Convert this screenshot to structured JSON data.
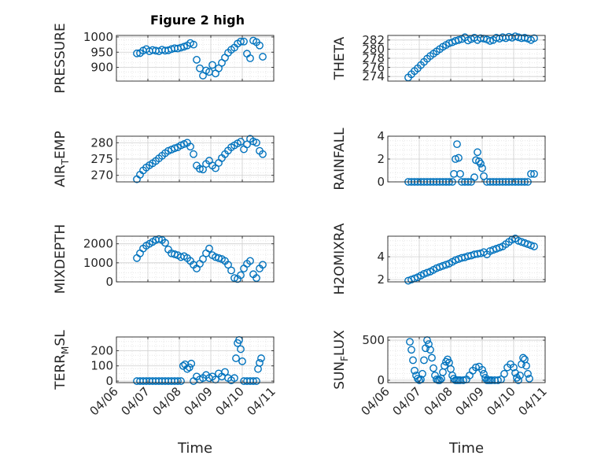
{
  "figure_title": "Figure 2 high",
  "colors": {
    "marker": "#0072BD",
    "axis": "#262626",
    "grid": "#d9d9d9"
  },
  "chart_data": [
    {
      "type": "scatter",
      "title": "Figure 2 high",
      "ylabel": "PRESSURE",
      "xlabel": "",
      "xlim": [
        0,
        5
      ],
      "ylim": [
        855,
        1005
      ],
      "yticks": [
        900,
        950,
        1000
      ],
      "xticks": [
        0,
        1,
        2,
        3,
        4,
        5
      ],
      "xticklabels": [
        "04/06",
        "04/07",
        "04/08",
        "04/09",
        "04/10",
        "04/11"
      ],
      "grid": true,
      "marker": "o",
      "x": [
        0.65,
        0.75,
        0.85,
        0.95,
        1.05,
        1.15,
        1.25,
        1.35,
        1.45,
        1.55,
        1.65,
        1.75,
        1.85,
        1.95,
        2.05,
        2.15,
        2.25,
        2.35,
        2.45,
        2.55,
        2.65,
        2.75,
        2.85,
        2.95,
        3.05,
        3.15,
        3.25,
        3.35,
        3.45,
        3.55,
        3.65,
        3.75,
        3.85,
        3.95,
        4.05,
        4.15,
        4.25,
        4.35,
        4.45,
        4.55,
        4.65
      ],
      "y": [
        946,
        947,
        955,
        960,
        953,
        957,
        955,
        953,
        958,
        955,
        956,
        960,
        963,
        962,
        965,
        968,
        972,
        980,
        975,
        925,
        897,
        873,
        890,
        885,
        908,
        880,
        897,
        915,
        932,
        948,
        958,
        965,
        978,
        985,
        985,
        945,
        930,
        988,
        983,
        972,
        935
      ]
    },
    {
      "type": "scatter",
      "title": "",
      "ylabel": "THETA",
      "xlabel": "",
      "xlim": [
        0,
        5
      ],
      "ylim": [
        273,
        283
      ],
      "yticks": [
        274,
        276,
        278,
        280,
        282
      ],
      "xticks": [
        0,
        1,
        2,
        3,
        4,
        5
      ],
      "xticklabels": [
        "04/06",
        "04/07",
        "04/08",
        "04/09",
        "04/10",
        "04/11"
      ],
      "grid": true,
      "marker": "o",
      "x": [
        0.65,
        0.75,
        0.85,
        0.95,
        1.05,
        1.15,
        1.25,
        1.35,
        1.45,
        1.55,
        1.65,
        1.75,
        1.85,
        1.95,
        2.05,
        2.15,
        2.25,
        2.35,
        2.45,
        2.55,
        2.65,
        2.75,
        2.85,
        2.95,
        3.05,
        3.15,
        3.25,
        3.35,
        3.45,
        3.55,
        3.65,
        3.75,
        3.85,
        3.95,
        4.05,
        4.15,
        4.25,
        4.35,
        4.45,
        4.55,
        4.65
      ],
      "y": [
        273.8,
        274.5,
        275.2,
        275.8,
        276.5,
        277.2,
        277.9,
        278.5,
        279.0,
        279.5,
        280.0,
        280.5,
        280.9,
        281.3,
        281.5,
        281.8,
        282.0,
        282.2,
        282.6,
        281.9,
        282.2,
        282.5,
        282.0,
        282.4,
        282.3,
        282.1,
        281.8,
        282.0,
        282.5,
        282.3,
        282.6,
        282.4,
        282.7,
        282.5,
        282.8,
        282.6,
        282.4,
        282.5,
        282.3,
        282.0,
        282.4
      ]
    },
    {
      "type": "scatter",
      "title": "",
      "ylabel": "AIR_TEMP",
      "xlabel": "",
      "xlim": [
        0,
        5
      ],
      "ylim": [
        268,
        282
      ],
      "yticks": [
        270,
        275,
        280
      ],
      "xticks": [
        0,
        1,
        2,
        3,
        4,
        5
      ],
      "xticklabels": [
        "04/06",
        "04/07",
        "04/08",
        "04/09",
        "04/10",
        "04/11"
      ],
      "grid": true,
      "marker": "o",
      "x": [
        0.65,
        0.75,
        0.85,
        0.95,
        1.05,
        1.15,
        1.25,
        1.35,
        1.45,
        1.55,
        1.65,
        1.75,
        1.85,
        1.95,
        2.05,
        2.15,
        2.25,
        2.35,
        2.45,
        2.55,
        2.65,
        2.75,
        2.85,
        2.95,
        3.05,
        3.15,
        3.25,
        3.35,
        3.45,
        3.55,
        3.65,
        3.75,
        3.85,
        3.95,
        4.05,
        4.15,
        4.25,
        4.35,
        4.45,
        4.55,
        4.65
      ],
      "y": [
        268.8,
        270.2,
        271.5,
        272.4,
        273.1,
        273.7,
        274.4,
        275.2,
        276.0,
        276.8,
        277.5,
        277.9,
        278.3,
        278.6,
        279.2,
        279.6,
        280.0,
        278.8,
        276.5,
        273.0,
        272.0,
        271.8,
        273.5,
        274.5,
        273.0,
        272.2,
        273.8,
        275.3,
        276.5,
        277.6,
        278.6,
        279.2,
        279.8,
        280.3,
        278.0,
        279.5,
        281.2,
        280.4,
        280.0,
        277.5,
        276.5
      ]
    },
    {
      "type": "scatter",
      "title": "",
      "ylabel": "RAINFALL",
      "xlabel": "",
      "xlim": [
        0,
        5
      ],
      "ylim": [
        0,
        4
      ],
      "yticks": [
        0,
        2,
        4
      ],
      "xticks": [
        0,
        1,
        2,
        3,
        4,
        5
      ],
      "xticklabels": [
        "04/06",
        "04/07",
        "04/08",
        "04/09",
        "04/10",
        "04/11"
      ],
      "grid": true,
      "marker": "o",
      "x": [
        0.65,
        0.75,
        0.85,
        0.95,
        1.05,
        1.15,
        1.25,
        1.35,
        1.45,
        1.55,
        1.65,
        1.75,
        1.85,
        1.95,
        2.05,
        2.1,
        2.15,
        2.2,
        2.25,
        2.3,
        2.35,
        2.45,
        2.55,
        2.65,
        2.75,
        2.8,
        2.85,
        2.9,
        2.95,
        3.0,
        3.05,
        3.15,
        3.25,
        3.35,
        3.45,
        3.55,
        3.65,
        3.75,
        3.85,
        3.95,
        4.05,
        4.15,
        4.25,
        4.35,
        4.45,
        4.55,
        4.65
      ],
      "y": [
        0,
        0,
        0,
        0,
        0,
        0,
        0,
        0,
        0,
        0,
        0,
        0,
        0,
        0,
        0,
        0.7,
        2.0,
        3.3,
        2.1,
        0.7,
        0,
        0,
        0,
        0,
        0.4,
        1.9,
        2.6,
        1.8,
        1.6,
        1.2,
        0.5,
        0,
        0,
        0,
        0,
        0,
        0,
        0,
        0,
        0,
        0,
        0,
        0,
        0,
        0,
        0.7,
        0.7
      ]
    },
    {
      "type": "scatter",
      "title": "",
      "ylabel": "MIXDEPTH",
      "xlabel": "",
      "xlim": [
        0,
        5
      ],
      "ylim": [
        0,
        2400
      ],
      "yticks": [
        0,
        1000,
        2000
      ],
      "xticks": [
        0,
        1,
        2,
        3,
        4,
        5
      ],
      "xticklabels": [
        "04/06",
        "04/07",
        "04/08",
        "04/09",
        "04/10",
        "04/11"
      ],
      "grid": true,
      "marker": "o",
      "x": [
        0.65,
        0.75,
        0.85,
        0.95,
        1.05,
        1.15,
        1.25,
        1.35,
        1.45,
        1.55,
        1.65,
        1.75,
        1.85,
        1.95,
        2.05,
        2.15,
        2.25,
        2.35,
        2.45,
        2.55,
        2.65,
        2.75,
        2.85,
        2.95,
        3.05,
        3.15,
        3.25,
        3.35,
        3.45,
        3.55,
        3.65,
        3.75,
        3.85,
        3.95,
        4.05,
        4.15,
        4.25,
        4.35,
        4.45,
        4.55,
        4.65
      ],
      "y": [
        1250,
        1500,
        1750,
        1900,
        2000,
        2100,
        2200,
        2250,
        2200,
        2050,
        1700,
        1500,
        1450,
        1400,
        1300,
        1350,
        1250,
        1100,
        900,
        700,
        950,
        1200,
        1500,
        1750,
        1400,
        1300,
        1250,
        1200,
        1100,
        900,
        600,
        200,
        150,
        350,
        700,
        950,
        1100,
        400,
        200,
        700,
        900
      ]
    },
    {
      "type": "scatter",
      "title": "",
      "ylabel": "H2OMIXRA",
      "xlabel": "",
      "xlim": [
        0,
        5
      ],
      "ylim": [
        1.8,
        5.8
      ],
      "yticks": [
        2,
        4
      ],
      "xticks": [
        0,
        1,
        2,
        3,
        4,
        5
      ],
      "xticklabels": [
        "04/06",
        "04/07",
        "04/08",
        "04/09",
        "04/10",
        "04/11"
      ],
      "grid": true,
      "marker": "o",
      "x": [
        0.65,
        0.75,
        0.85,
        0.95,
        1.05,
        1.15,
        1.25,
        1.35,
        1.45,
        1.55,
        1.65,
        1.75,
        1.85,
        1.95,
        2.05,
        2.15,
        2.25,
        2.35,
        2.45,
        2.55,
        2.65,
        2.75,
        2.85,
        2.95,
        3.05,
        3.15,
        3.25,
        3.35,
        3.45,
        3.55,
        3.65,
        3.75,
        3.85,
        3.95,
        4.05,
        4.15,
        4.25,
        4.35,
        4.45,
        4.55,
        4.65
      ],
      "y": [
        1.9,
        2.0,
        2.1,
        2.2,
        2.35,
        2.5,
        2.6,
        2.7,
        2.85,
        3.0,
        3.1,
        3.2,
        3.3,
        3.4,
        3.55,
        3.7,
        3.8,
        3.9,
        3.95,
        4.05,
        4.1,
        4.2,
        4.25,
        4.3,
        4.4,
        4.2,
        4.5,
        4.6,
        4.7,
        4.8,
        4.9,
        5.1,
        5.3,
        5.5,
        5.6,
        5.4,
        5.3,
        5.2,
        5.1,
        5.0,
        4.9
      ]
    },
    {
      "type": "scatter",
      "title": "",
      "ylabel": "TERR_MSL",
      "xlabel": "Time",
      "xlim": [
        0,
        5
      ],
      "ylim": [
        -10,
        290
      ],
      "yticks": [
        0,
        100,
        200
      ],
      "xticks": [
        0,
        1,
        2,
        3,
        4,
        5
      ],
      "xticklabels": [
        "04/06",
        "04/07",
        "04/08",
        "04/09",
        "04/10",
        "04/11"
      ],
      "grid": true,
      "marker": "o",
      "x": [
        0.65,
        0.75,
        0.85,
        0.95,
        1.05,
        1.15,
        1.25,
        1.35,
        1.45,
        1.55,
        1.65,
        1.75,
        1.85,
        1.95,
        2.05,
        2.12,
        2.18,
        2.25,
        2.32,
        2.38,
        2.45,
        2.55,
        2.65,
        2.75,
        2.85,
        2.95,
        3.05,
        3.15,
        3.25,
        3.35,
        3.45,
        3.55,
        3.65,
        3.75,
        3.8,
        3.85,
        3.9,
        3.95,
        4.0,
        4.05,
        4.15,
        4.25,
        4.35,
        4.45,
        4.5,
        4.55,
        4.6
      ],
      "y": [
        0,
        0,
        0,
        0,
        0,
        0,
        0,
        0,
        0,
        0,
        0,
        0,
        0,
        0,
        0,
        100,
        110,
        80,
        90,
        115,
        0,
        30,
        10,
        20,
        40,
        20,
        30,
        10,
        50,
        30,
        60,
        20,
        5,
        20,
        150,
        250,
        270,
        210,
        130,
        0,
        0,
        0,
        0,
        0,
        80,
        120,
        150
      ]
    },
    {
      "type": "scatter",
      "title": "",
      "ylabel": "SUN_FLUX",
      "xlabel": "Time",
      "xlim": [
        0,
        5
      ],
      "ylim": [
        -30,
        540
      ],
      "yticks": [
        0,
        500
      ],
      "xticks": [
        0,
        1,
        2,
        3,
        4,
        5
      ],
      "xticklabels": [
        "04/06",
        "04/07",
        "04/08",
        "04/09",
        "04/10",
        "04/11"
      ],
      "grid": true,
      "marker": "o",
      "x": [
        0.7,
        0.75,
        0.8,
        0.85,
        0.9,
        0.95,
        1.0,
        1.05,
        1.1,
        1.15,
        1.2,
        1.25,
        1.3,
        1.35,
        1.4,
        1.45,
        1.5,
        1.55,
        1.6,
        1.65,
        1.7,
        1.75,
        1.8,
        1.85,
        1.9,
        1.95,
        2.0,
        2.05,
        2.1,
        2.15,
        2.2,
        2.25,
        2.3,
        2.4,
        2.5,
        2.6,
        2.7,
        2.8,
        2.9,
        3.0,
        3.05,
        3.1,
        3.15,
        3.2,
        3.25,
        3.3,
        3.4,
        3.5,
        3.6,
        3.7,
        3.8,
        3.9,
        4.0,
        4.05,
        4.1,
        4.15,
        4.2,
        4.25,
        4.3,
        4.35,
        4.4,
        4.45,
        4.5
      ],
      "y": [
        480,
        380,
        250,
        120,
        60,
        20,
        0,
        10,
        80,
        250,
        400,
        500,
        450,
        380,
        280,
        150,
        60,
        10,
        0,
        0,
        20,
        100,
        180,
        230,
        260,
        220,
        140,
        60,
        20,
        0,
        0,
        0,
        0,
        0,
        10,
        60,
        120,
        160,
        170,
        130,
        80,
        30,
        0,
        0,
        0,
        0,
        0,
        0,
        10,
        80,
        160,
        200,
        160,
        90,
        30,
        0,
        60,
        200,
        280,
        260,
        180,
        80,
        20
      ]
    }
  ]
}
